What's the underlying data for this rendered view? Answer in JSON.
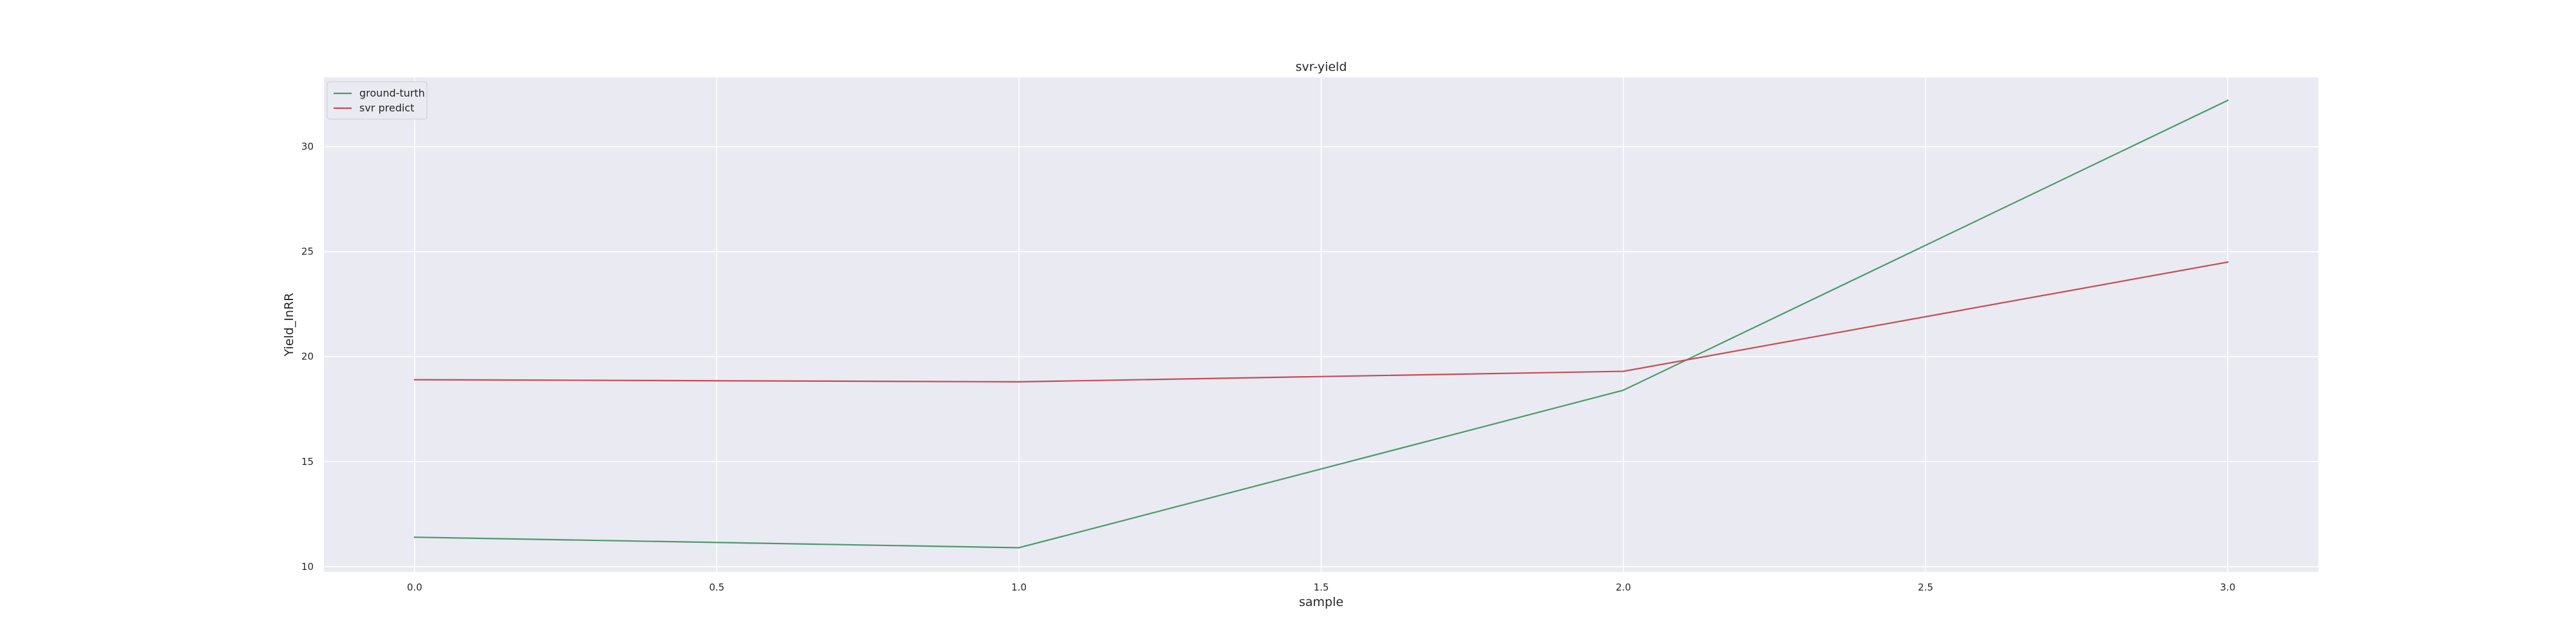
{
  "chart_data": {
    "type": "line",
    "title": "svr-yield",
    "xlabel": "sample",
    "ylabel": "Yield_InRR",
    "x": [
      0.0,
      1.0,
      2.0,
      3.0
    ],
    "xlim": [
      -0.15,
      3.15
    ],
    "ylim": [
      9.75,
      33.3
    ],
    "xticks": [
      0.0,
      0.5,
      1.0,
      1.5,
      2.0,
      2.5,
      3.0
    ],
    "xtick_labels": [
      "0.0",
      "0.5",
      "1.0",
      "1.5",
      "2.0",
      "2.5",
      "3.0"
    ],
    "yticks": [
      10,
      15,
      20,
      25,
      30
    ],
    "ytick_labels": [
      "10",
      "15",
      "20",
      "25",
      "30"
    ],
    "grid": true,
    "legend_position": "top-left",
    "series": [
      {
        "name": "ground-turth",
        "color": "#4c9a6a",
        "values": [
          11.4,
          10.9,
          18.4,
          32.2
        ]
      },
      {
        "name": "svr predict",
        "color": "#c44e52",
        "values": [
          18.9,
          18.8,
          19.3,
          24.5
        ]
      }
    ],
    "background": "#eaeaf2",
    "grid_color": "#ffffff"
  }
}
